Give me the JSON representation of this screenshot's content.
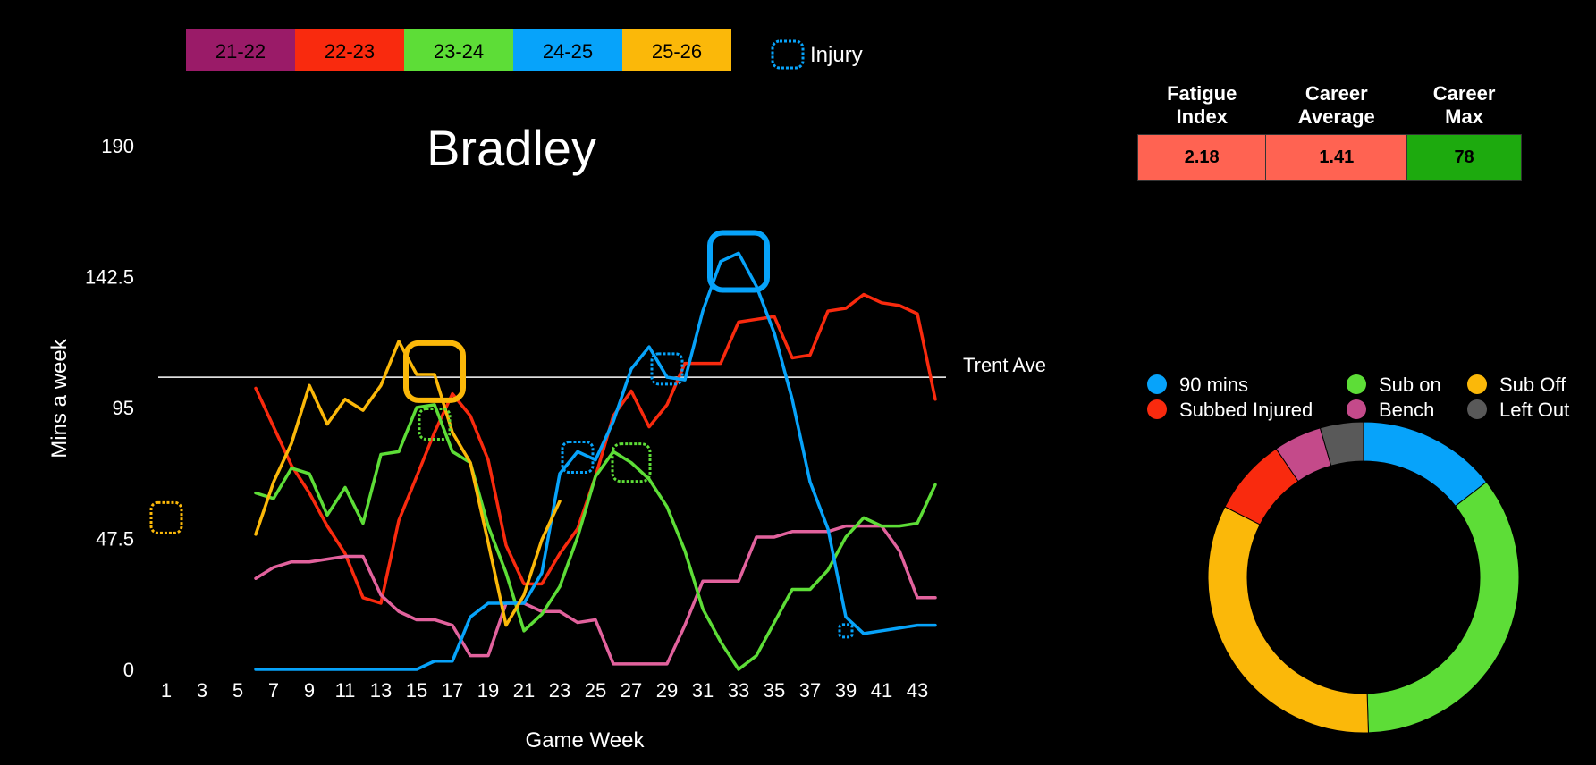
{
  "title": "Bradley",
  "legend": {
    "seasons": [
      {
        "label": "21-22",
        "color": "#9A1B68"
      },
      {
        "label": "22-23",
        "color": "#F92A0E"
      },
      {
        "label": "23-24",
        "color": "#5DDD37"
      },
      {
        "label": "24-25",
        "color": "#07A3FA"
      },
      {
        "label": "25-26",
        "color": "#FBB809"
      }
    ],
    "injury_label": "Injury"
  },
  "stats": {
    "headers": [
      "Fatigue\nIndex",
      "Career\nAverage",
      "Career\nMax"
    ],
    "values": [
      "2.18",
      "1.41",
      "78"
    ],
    "colors": [
      "#FF6352",
      "#FF6352",
      "#1DAA0E"
    ]
  },
  "chart_data": [
    {
      "type": "line",
      "title": "Bradley",
      "xlabel": "Game Week",
      "ylabel": "Mins a week",
      "xlim": [
        0,
        45
      ],
      "ylim": [
        0,
        190
      ],
      "x_ticks": [
        "1",
        "3",
        "5",
        "7",
        "9",
        "11",
        "13",
        "15",
        "17",
        "19",
        "21",
        "23",
        "25",
        "27",
        "29",
        "31",
        "33",
        "35",
        "37",
        "39",
        "41",
        "43"
      ],
      "y_ticks": [
        "0",
        "47.5",
        "95",
        "142.5",
        "190"
      ],
      "reference_line": {
        "label": "Trent Ave",
        "value": 106
      },
      "series": [
        {
          "name": "22-23",
          "color": "#F92A0E",
          "points": [
            [
              6,
              102
            ],
            [
              7,
              88
            ],
            [
              8,
              74
            ],
            [
              9,
              64
            ],
            [
              10,
              52
            ],
            [
              11,
              42
            ],
            [
              12,
              26
            ],
            [
              13,
              24
            ],
            [
              14,
              54
            ],
            [
              15,
              70
            ],
            [
              16,
              86
            ],
            [
              17,
              100
            ],
            [
              18,
              92
            ],
            [
              19,
              76
            ],
            [
              20,
              45
            ],
            [
              21,
              31
            ],
            [
              22,
              31
            ],
            [
              23,
              42
            ],
            [
              24,
              51
            ],
            [
              25,
              70
            ],
            [
              26,
              92
            ],
            [
              27,
              101
            ],
            [
              28,
              88
            ],
            [
              29,
              96
            ],
            [
              30,
              111
            ],
            [
              31,
              111
            ],
            [
              32,
              111
            ],
            [
              33,
              126
            ],
            [
              34,
              127
            ],
            [
              35,
              128
            ],
            [
              36,
              113
            ],
            [
              37,
              114
            ],
            [
              38,
              130
            ],
            [
              39,
              131
            ],
            [
              40,
              136
            ],
            [
              41,
              133
            ],
            [
              42,
              132
            ],
            [
              43,
              129
            ],
            [
              44,
              98
            ]
          ]
        },
        {
          "name": "21-22",
          "color": "#E2629D",
          "points": [
            [
              6,
              33
            ],
            [
              7,
              37
            ],
            [
              8,
              39
            ],
            [
              9,
              39
            ],
            [
              10,
              40
            ],
            [
              11,
              41
            ],
            [
              12,
              41
            ],
            [
              13,
              27
            ],
            [
              14,
              21
            ],
            [
              15,
              18
            ],
            [
              16,
              18
            ],
            [
              17,
              16
            ],
            [
              18,
              5
            ],
            [
              19,
              5
            ],
            [
              20,
              24
            ],
            [
              21,
              24
            ],
            [
              22,
              21
            ],
            [
              23,
              21
            ],
            [
              24,
              17
            ],
            [
              25,
              18
            ],
            [
              26,
              2
            ],
            [
              27,
              2
            ],
            [
              28,
              2
            ],
            [
              29,
              2
            ],
            [
              30,
              16
            ],
            [
              31,
              32
            ],
            [
              32,
              32
            ],
            [
              33,
              32
            ],
            [
              34,
              48
            ],
            [
              35,
              48
            ],
            [
              36,
              50
            ],
            [
              37,
              50
            ],
            [
              38,
              50
            ],
            [
              39,
              52
            ],
            [
              40,
              52
            ],
            [
              41,
              52
            ],
            [
              42,
              43
            ],
            [
              43,
              26
            ],
            [
              44,
              26
            ]
          ]
        },
        {
          "name": "23-24",
          "color": "#5DDD37",
          "points": [
            [
              6,
              64
            ],
            [
              7,
              62
            ],
            [
              8,
              73
            ],
            [
              9,
              71
            ],
            [
              10,
              56
            ],
            [
              11,
              66
            ],
            [
              12,
              53
            ],
            [
              13,
              78
            ],
            [
              14,
              79
            ],
            [
              15,
              95
            ],
            [
              16,
              96
            ],
            [
              17,
              79
            ],
            [
              18,
              75
            ],
            [
              19,
              52
            ],
            [
              20,
              35
            ],
            [
              21,
              14
            ],
            [
              22,
              20
            ],
            [
              23,
              30
            ],
            [
              24,
              48
            ],
            [
              25,
              70
            ],
            [
              26,
              79
            ],
            [
              27,
              75
            ],
            [
              28,
              69
            ],
            [
              29,
              59
            ],
            [
              30,
              43
            ],
            [
              31,
              22
            ],
            [
              32,
              10
            ],
            [
              33,
              0
            ],
            [
              34,
              5
            ],
            [
              35,
              17
            ],
            [
              36,
              29
            ],
            [
              37,
              29
            ],
            [
              38,
              36
            ],
            [
              39,
              48
            ],
            [
              40,
              55
            ],
            [
              41,
              52
            ],
            [
              42,
              52
            ],
            [
              43,
              53
            ],
            [
              44,
              67
            ]
          ]
        },
        {
          "name": "24-25",
          "color": "#07A3FA",
          "points": [
            [
              6,
              0
            ],
            [
              7,
              0
            ],
            [
              8,
              0
            ],
            [
              9,
              0
            ],
            [
              10,
              0
            ],
            [
              11,
              0
            ],
            [
              12,
              0
            ],
            [
              13,
              0
            ],
            [
              14,
              0
            ],
            [
              15,
              0
            ],
            [
              16,
              3
            ],
            [
              17,
              3
            ],
            [
              18,
              19
            ],
            [
              19,
              24
            ],
            [
              20,
              24
            ],
            [
              21,
              24
            ],
            [
              22,
              35
            ],
            [
              23,
              71
            ],
            [
              24,
              79
            ],
            [
              25,
              76
            ],
            [
              26,
              90
            ],
            [
              27,
              109
            ],
            [
              28,
              117
            ],
            [
              29,
              106
            ],
            [
              30,
              105
            ],
            [
              31,
              130
            ],
            [
              32,
              148
            ],
            [
              33,
              151
            ],
            [
              34,
              139
            ],
            [
              35,
              122
            ],
            [
              36,
              98
            ],
            [
              37,
              68
            ],
            [
              38,
              51
            ],
            [
              39,
              19
            ],
            [
              40,
              13
            ],
            [
              41,
              14
            ],
            [
              42,
              15
            ],
            [
              43,
              16
            ],
            [
              44,
              16
            ]
          ]
        },
        {
          "name": "25-26",
          "color": "#FBB809",
          "points": [
            [
              6,
              49
            ],
            [
              7,
              68
            ],
            [
              8,
              82
            ],
            [
              9,
              103
            ],
            [
              10,
              89
            ],
            [
              11,
              98
            ],
            [
              12,
              94
            ],
            [
              13,
              103
            ],
            [
              14,
              119
            ],
            [
              15,
              107
            ],
            [
              16,
              107
            ],
            [
              17,
              86
            ],
            [
              18,
              75
            ],
            [
              19,
              46
            ],
            [
              20,
              16
            ],
            [
              21,
              27
            ],
            [
              22,
              47
            ],
            [
              23,
              61
            ]
          ]
        }
      ],
      "injuries": [
        {
          "week": 1,
          "value": 55,
          "color": "#FBB809",
          "size": "small"
        },
        {
          "week": 16,
          "value": 108,
          "color": "#FBB809",
          "size": "large"
        },
        {
          "week": 16,
          "value": 89,
          "color": "#5DDD37",
          "size": "small"
        },
        {
          "week": 24,
          "value": 77,
          "color": "#07A3FA",
          "size": "small"
        },
        {
          "week": 27,
          "value": 75,
          "color": "#5DDD37",
          "size": "medium"
        },
        {
          "week": 29,
          "value": 109,
          "color": "#07A3FA",
          "size": "small"
        },
        {
          "week": 33,
          "value": 148,
          "color": "#07A3FA",
          "size": "large"
        },
        {
          "week": 39,
          "value": 14,
          "color": "#07A3FA",
          "size": "tiny"
        }
      ]
    },
    {
      "type": "pie",
      "donut": true,
      "legend": [
        "90 mins",
        "Sub on",
        "Sub Off",
        "Subbed Injured",
        "Bench",
        "Left Out"
      ],
      "slices": [
        {
          "label": "90 mins",
          "value": 14.5,
          "color": "#07A3FA"
        },
        {
          "label": "Sub on",
          "value": 35,
          "color": "#5DDD37"
        },
        {
          "label": "Sub Off",
          "value": 33,
          "color": "#FBB809"
        },
        {
          "label": "Subbed Injured",
          "value": 8,
          "color": "#F92A0E"
        },
        {
          "label": "Bench",
          "value": 5,
          "color": "#C44A8A"
        },
        {
          "label": "Left Out",
          "value": 4.5,
          "color": "#595959"
        }
      ]
    }
  ]
}
